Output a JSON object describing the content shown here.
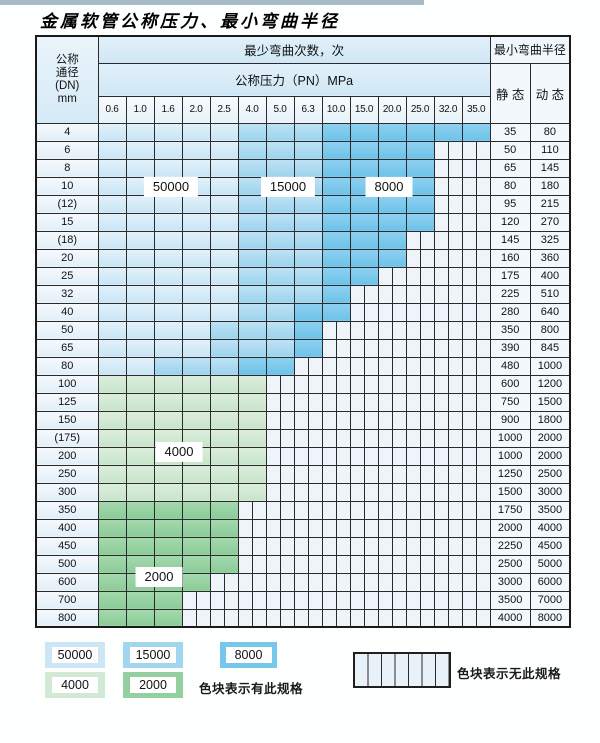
{
  "title": "金属软管公称压力、最小弯曲半径",
  "table": {
    "dn_header_lines": [
      "公称",
      "通径",
      "(DN)",
      "mm"
    ],
    "bend_cycles_header": "最少弯曲次数，次",
    "pressure_header": "公称压力（PN）MPa",
    "pressure_columns": [
      "0.6",
      "1.0",
      "1.6",
      "2.0",
      "2.5",
      "4.0",
      "5.0",
      "6.3",
      "10.0",
      "15.0",
      "20.0",
      "25.0",
      "32.0",
      "35.0"
    ],
    "radius_header": "最小弯曲半径",
    "static_header": "静 态",
    "dynamic_header": "动 态",
    "cell_legend_note": "cells: L=50000 M=15000 D=8000 G=4000 H=2000 N=no-spec",
    "rows": [
      {
        "dn": "4",
        "cells": "LLLLLMMMDDDDDD",
        "static": "35",
        "dynamic": "80"
      },
      {
        "dn": "6",
        "cells": "LLLLLMMMDDDDNN",
        "static": "50",
        "dynamic": "110"
      },
      {
        "dn": "8",
        "cells": "LLLLLMMMDDDDNN",
        "static": "65",
        "dynamic": "145"
      },
      {
        "dn": "10",
        "cells": "LLLLLMMMDDDDNN",
        "static": "80",
        "dynamic": "180"
      },
      {
        "dn": "(12)",
        "cells": "LLLLLMMMDDDDNN",
        "static": "95",
        "dynamic": "215"
      },
      {
        "dn": "15",
        "cells": "LLLLLMMMDDDDNN",
        "static": "120",
        "dynamic": "270"
      },
      {
        "dn": "(18)",
        "cells": "LLLLLMMMDDDNNN",
        "static": "145",
        "dynamic": "325"
      },
      {
        "dn": "20",
        "cells": "LLLLLMMMDDDNNN",
        "static": "160",
        "dynamic": "360"
      },
      {
        "dn": "25",
        "cells": "LLLLLMMMDDNNNN",
        "static": "175",
        "dynamic": "400"
      },
      {
        "dn": "32",
        "cells": "LLLLLMMMDNNNNN",
        "static": "225",
        "dynamic": "510"
      },
      {
        "dn": "40",
        "cells": "LLLLLMMDDNNNNN",
        "static": "280",
        "dynamic": "640"
      },
      {
        "dn": "50",
        "cells": "LLLLMMMDNNNNNN",
        "static": "350",
        "dynamic": "800"
      },
      {
        "dn": "65",
        "cells": "LLLLMMMDNNNNNN",
        "static": "390",
        "dynamic": "845"
      },
      {
        "dn": "80",
        "cells": "LLMMMDDNNNNNNN",
        "static": "480",
        "dynamic": "1000"
      },
      {
        "dn": "100",
        "cells": "GGGGGGNNNNNNNN",
        "static": "600",
        "dynamic": "1200"
      },
      {
        "dn": "125",
        "cells": "GGGGGGNNNNNNNN",
        "static": "750",
        "dynamic": "1500"
      },
      {
        "dn": "150",
        "cells": "GGGGGGNNNNNNNN",
        "static": "900",
        "dynamic": "1800"
      },
      {
        "dn": "(175)",
        "cells": "GGGGGGNNNNNNNN",
        "static": "1000",
        "dynamic": "2000"
      },
      {
        "dn": "200",
        "cells": "GGGGGGNNNNNNNN",
        "static": "1000",
        "dynamic": "2000"
      },
      {
        "dn": "250",
        "cells": "GGGGGGNNNNNNNN",
        "static": "1250",
        "dynamic": "2500"
      },
      {
        "dn": "300",
        "cells": "GGGGGGNNNNNNNN",
        "static": "1500",
        "dynamic": "3000"
      },
      {
        "dn": "350",
        "cells": "HHHHHNNNNNNNNN",
        "static": "1750",
        "dynamic": "3500"
      },
      {
        "dn": "400",
        "cells": "HHHHHNNNNNNNNN",
        "static": "2000",
        "dynamic": "4000"
      },
      {
        "dn": "450",
        "cells": "HHHHHNNNNNNNNN",
        "static": "2250",
        "dynamic": "4500"
      },
      {
        "dn": "500",
        "cells": "HHHHHNNNNNNNNN",
        "static": "2500",
        "dynamic": "5000"
      },
      {
        "dn": "600",
        "cells": "HHHHNNNNNNNNNN",
        "static": "3000",
        "dynamic": "6000"
      },
      {
        "dn": "700",
        "cells": "HHHNNNNNNNNNNN",
        "static": "3500",
        "dynamic": "7000"
      },
      {
        "dn": "800",
        "cells": "HHHNNNNNNNNNNN",
        "static": "4000",
        "dynamic": "8000"
      }
    ],
    "region_labels": [
      {
        "text": "50000"
      },
      {
        "text": "15000"
      },
      {
        "text": "8000"
      },
      {
        "text": "4000"
      },
      {
        "text": "2000"
      }
    ]
  },
  "legend": {
    "items": [
      {
        "value": "50000",
        "color": "#cde6f5"
      },
      {
        "value": "15000",
        "color": "#a2d6ef"
      },
      {
        "value": "8000",
        "color": "#76c7ea"
      },
      {
        "value": "4000",
        "color": "#d2e9d3"
      },
      {
        "value": "2000",
        "color": "#93cf9f"
      }
    ],
    "has_spec_text": "色块表示有此规格",
    "no_spec_text": "色块表示无此规格"
  },
  "colors": {
    "blue_50000": "#cde6f5",
    "blue_15000": "#9cd3ee",
    "blue_8000": "#6dc2e9",
    "green_4000": "#c8e4ca",
    "green_2000": "#8acc98",
    "no_spec_bg": "#eef4f9",
    "grid_line": "#2b2b2b"
  }
}
